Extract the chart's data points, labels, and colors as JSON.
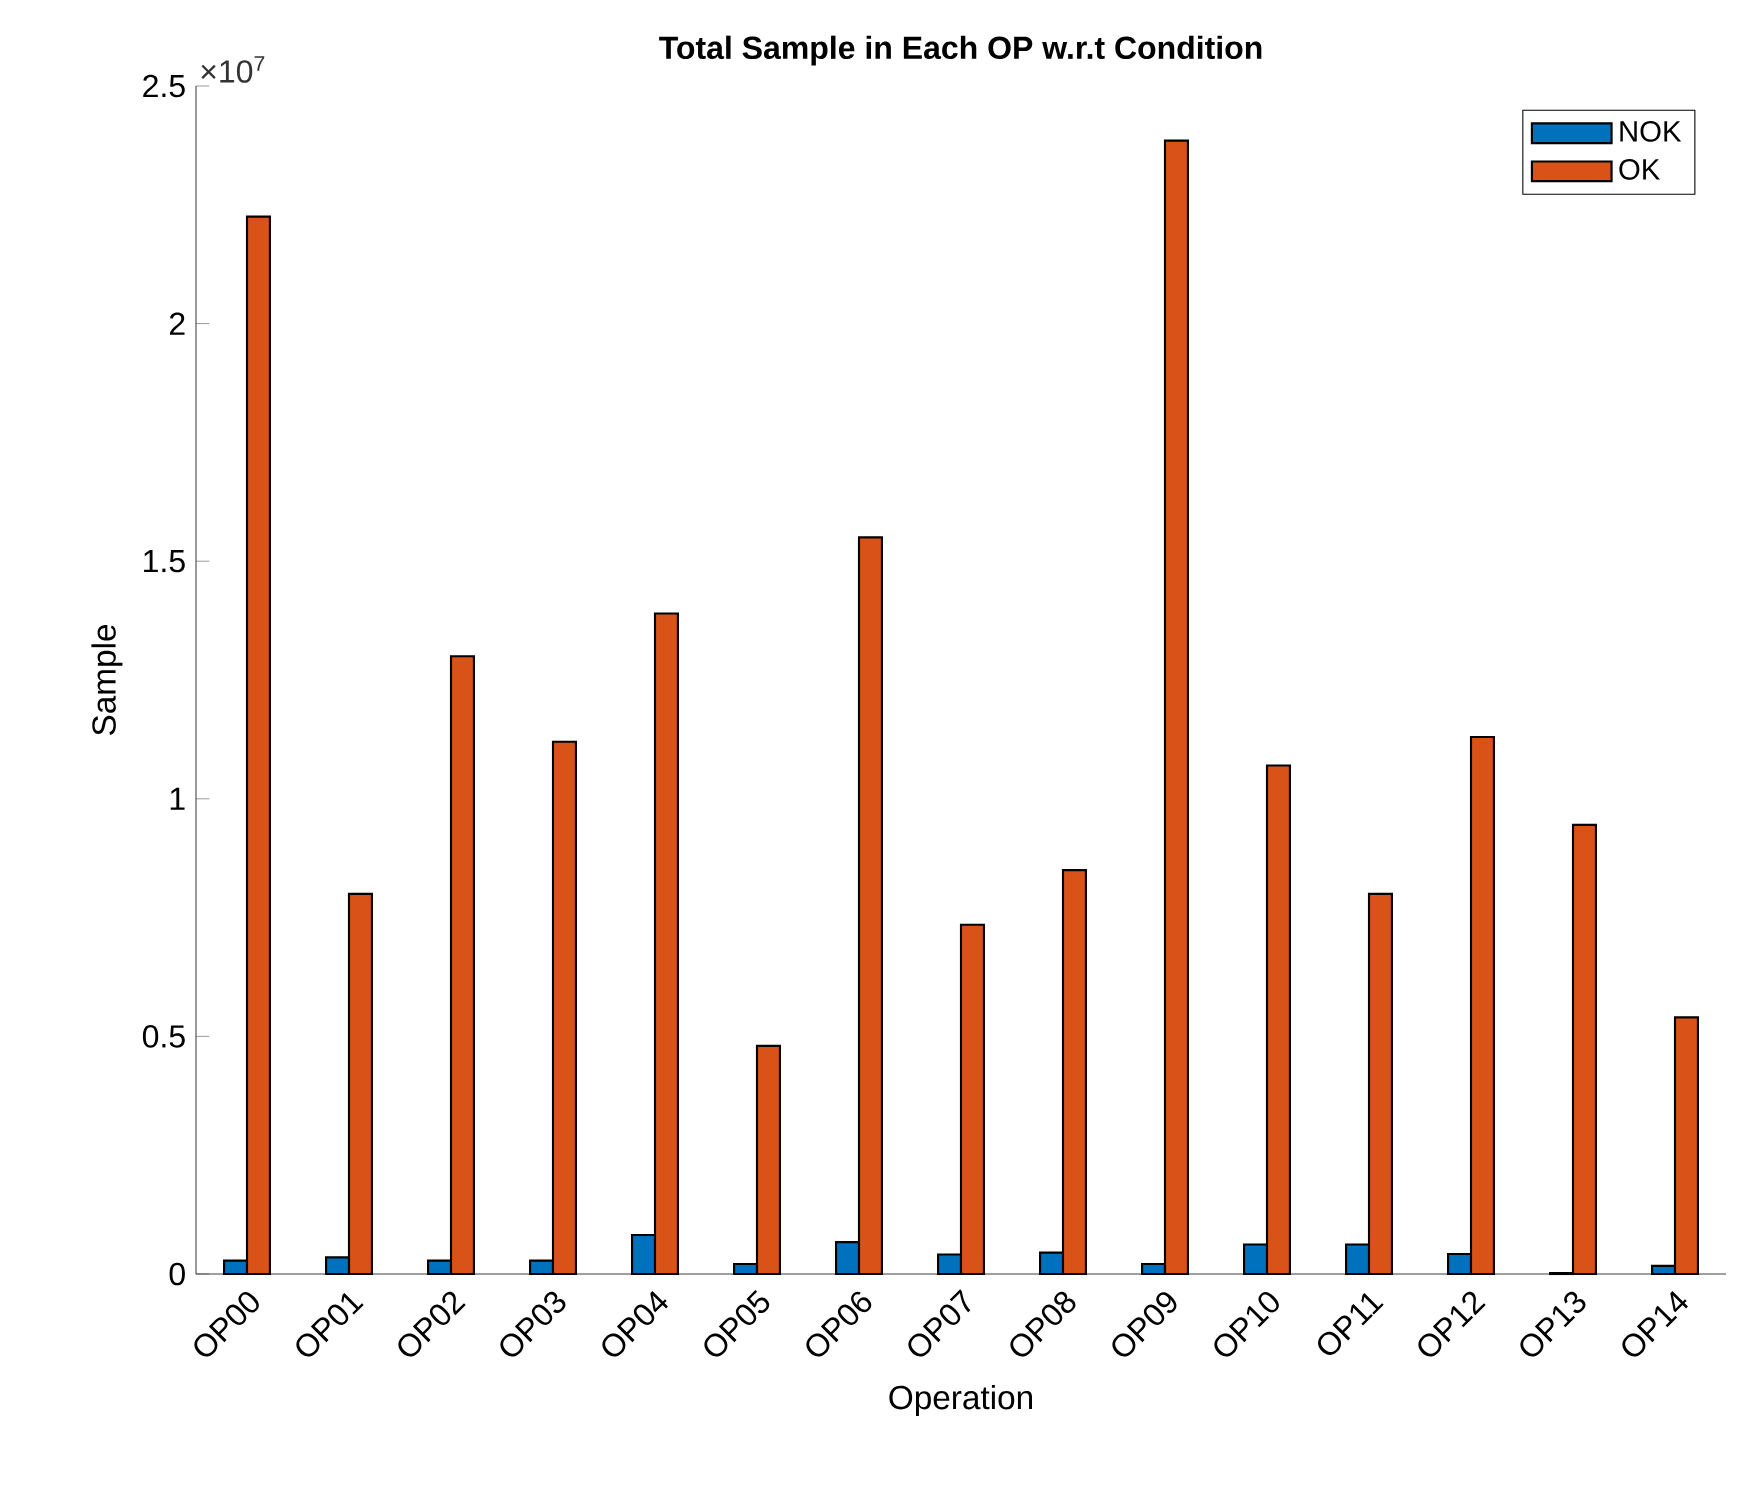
{
  "chart_data": {
    "type": "bar",
    "title": "Total Sample in Each OP w.r.t Condition",
    "xlabel": "Operation",
    "ylabel": "Sample",
    "categories": [
      "OP00",
      "OP01",
      "OP02",
      "OP03",
      "OP04",
      "OP05",
      "OP06",
      "OP07",
      "OP08",
      "OP09",
      "OP10",
      "OP11",
      "OP12",
      "OP13",
      "OP14"
    ],
    "series": [
      {
        "name": "NOK",
        "color": "#0072bd",
        "values": [
          0.028,
          0.035,
          0.028,
          0.028,
          0.082,
          0.021,
          0.067,
          0.041,
          0.045,
          0.021,
          0.062,
          0.062,
          0.042,
          0.002,
          0.017
        ]
      },
      {
        "name": "OK",
        "color": "#d95319",
        "values": [
          2.225,
          0.8,
          1.3,
          1.12,
          1.39,
          0.48,
          1.55,
          0.735,
          0.85,
          2.385,
          1.07,
          0.8,
          1.13,
          0.945,
          0.54
        ]
      }
    ],
    "ylim": [
      0,
      2.5
    ],
    "yticks": [
      0,
      0.5,
      1,
      1.5,
      2,
      2.5
    ],
    "annotations": [
      "×10$^{7}$"
    ],
    "legend": "top right"
  }
}
